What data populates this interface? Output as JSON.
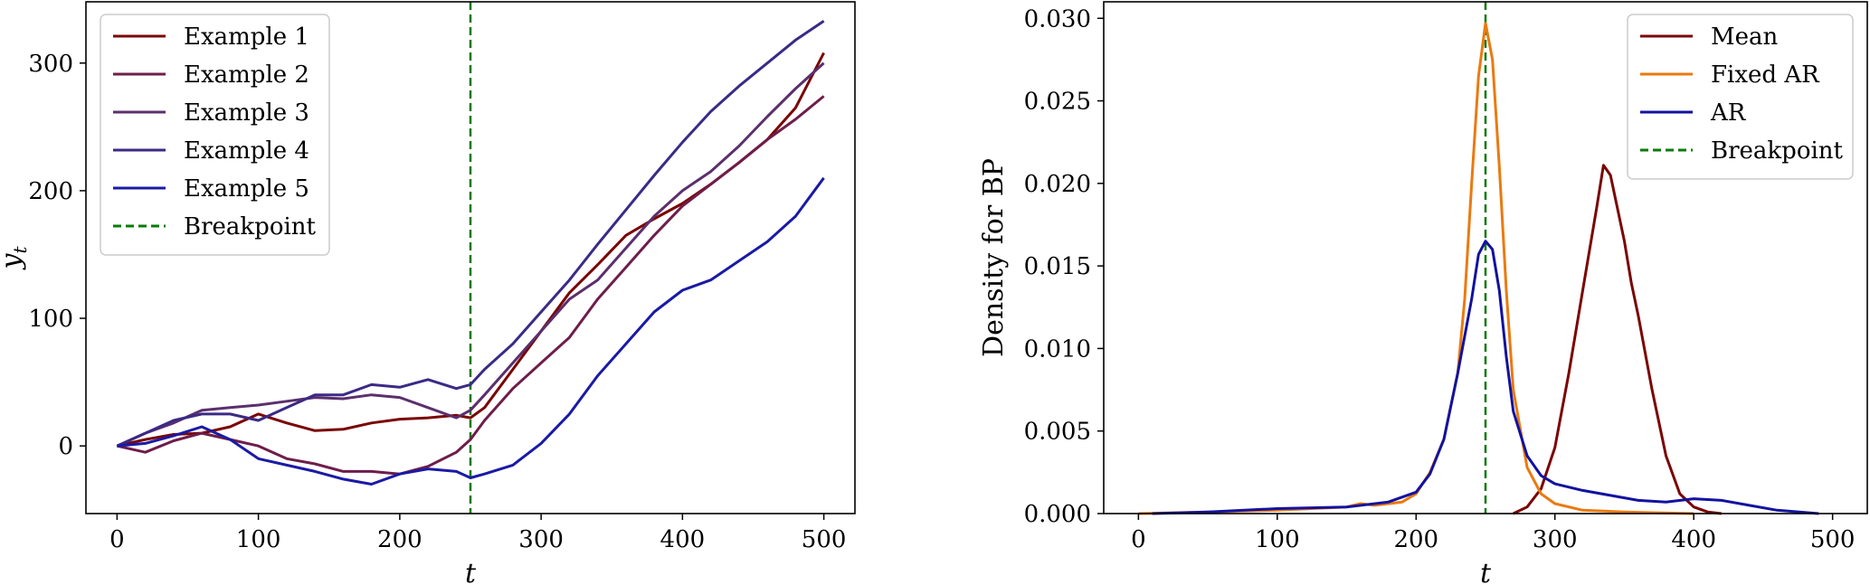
{
  "chart_data": [
    {
      "type": "line",
      "title": "",
      "xlabel": "t",
      "ylabel": "y",
      "ylabel_subscript": "t",
      "xlim": [
        -22,
        522
      ],
      "ylim": [
        -53,
        348
      ],
      "xticks": [
        0,
        100,
        200,
        300,
        400,
        500
      ],
      "yticks": [
        0,
        100,
        200,
        300
      ],
      "grid": false,
      "legend_position": "top-left",
      "breakpoint": 250,
      "series": [
        {
          "name": "Example 1",
          "color": "#7a0403",
          "x": [
            0,
            20,
            40,
            60,
            80,
            100,
            120,
            140,
            160,
            180,
            200,
            220,
            240,
            250,
            260,
            280,
            300,
            320,
            340,
            360,
            380,
            400,
            420,
            440,
            460,
            480,
            500
          ],
          "y": [
            0,
            5,
            9,
            10,
            15,
            25,
            18,
            12,
            13,
            18,
            21,
            22,
            24,
            22,
            30,
            60,
            90,
            120,
            142,
            165,
            178,
            190,
            205,
            222,
            240,
            265,
            308
          ]
        },
        {
          "name": "Example 2",
          "color": "#6e1d4a",
          "x": [
            0,
            20,
            40,
            60,
            80,
            100,
            120,
            140,
            160,
            180,
            200,
            220,
            240,
            250,
            260,
            280,
            300,
            320,
            340,
            360,
            380,
            400,
            420,
            440,
            460,
            480,
            500
          ],
          "y": [
            0,
            -5,
            4,
            10,
            5,
            0,
            -10,
            -14,
            -20,
            -20,
            -22,
            -16,
            -5,
            5,
            20,
            45,
            65,
            85,
            115,
            140,
            165,
            188,
            205,
            222,
            240,
            256,
            274
          ]
        },
        {
          "name": "Example 3",
          "color": "#5b2f6d",
          "x": [
            0,
            20,
            40,
            60,
            80,
            100,
            120,
            140,
            160,
            180,
            200,
            220,
            240,
            250,
            260,
            280,
            300,
            320,
            340,
            360,
            380,
            400,
            420,
            440,
            460,
            480,
            500
          ],
          "y": [
            0,
            10,
            18,
            28,
            30,
            32,
            35,
            38,
            37,
            40,
            38,
            30,
            22,
            28,
            40,
            65,
            90,
            115,
            130,
            155,
            180,
            200,
            215,
            235,
            258,
            280,
            300
          ]
        },
        {
          "name": "Example 4",
          "color": "#3b2a85",
          "x": [
            0,
            20,
            40,
            60,
            80,
            100,
            120,
            140,
            160,
            180,
            200,
            220,
            240,
            250,
            260,
            280,
            300,
            320,
            340,
            360,
            380,
            400,
            420,
            440,
            460,
            480,
            500
          ],
          "y": [
            0,
            10,
            20,
            25,
            25,
            20,
            30,
            40,
            40,
            48,
            46,
            52,
            45,
            48,
            60,
            80,
            105,
            130,
            158,
            185,
            212,
            238,
            262,
            282,
            300,
            318,
            333
          ]
        },
        {
          "name": "Example 5",
          "color": "#1a1aa6",
          "x": [
            0,
            20,
            40,
            60,
            80,
            100,
            120,
            140,
            160,
            180,
            200,
            220,
            240,
            250,
            260,
            280,
            300,
            320,
            340,
            360,
            380,
            400,
            420,
            440,
            460,
            480,
            500
          ],
          "y": [
            0,
            2,
            8,
            15,
            5,
            -10,
            -15,
            -20,
            -26,
            -30,
            -22,
            -18,
            -20,
            -25,
            -22,
            -15,
            2,
            25,
            55,
            80,
            105,
            122,
            130,
            145,
            160,
            180,
            210
          ]
        }
      ]
    },
    {
      "type": "line",
      "title": "",
      "xlabel": "t",
      "ylabel": "Density for BP",
      "xlim": [
        -25,
        525
      ],
      "ylim": [
        0,
        0.031
      ],
      "xticks": [
        0,
        100,
        200,
        300,
        400,
        500
      ],
      "yticks": [
        0.0,
        0.005,
        0.01,
        0.015,
        0.02,
        0.025,
        0.03
      ],
      "ytick_labels": [
        "0.000",
        "0.005",
        "0.010",
        "0.015",
        "0.020",
        "0.025",
        "0.030"
      ],
      "grid": false,
      "legend_position": "top-right",
      "breakpoint": 250,
      "series": [
        {
          "name": "Mean",
          "color": "#7a0403",
          "x": [
            270,
            280,
            290,
            300,
            310,
            320,
            330,
            335,
            340,
            350,
            355,
            360,
            370,
            380,
            390,
            400,
            410,
            420
          ],
          "y": [
            0.0,
            0.0004,
            0.0015,
            0.004,
            0.0085,
            0.0135,
            0.0185,
            0.0211,
            0.0205,
            0.0165,
            0.014,
            0.012,
            0.0075,
            0.0035,
            0.0012,
            0.0004,
            0.0001,
            0.0
          ]
        },
        {
          "name": "Fixed AR",
          "color": "#ea7a10",
          "x": [
            0,
            50,
            100,
            150,
            160,
            170,
            190,
            200,
            210,
            220,
            230,
            235,
            240,
            245,
            250,
            255,
            260,
            265,
            270,
            280,
            290,
            300,
            320,
            350,
            400
          ],
          "y": [
            0.0,
            0.0001,
            0.0002,
            0.0004,
            0.0006,
            0.0005,
            0.0007,
            0.0012,
            0.0025,
            0.0045,
            0.0085,
            0.013,
            0.02,
            0.0265,
            0.0297,
            0.0275,
            0.021,
            0.0135,
            0.0075,
            0.0028,
            0.0012,
            0.0006,
            0.0002,
            0.0001,
            0.0
          ]
        },
        {
          "name": "AR",
          "color": "#1212a0",
          "x": [
            10,
            50,
            100,
            150,
            180,
            200,
            210,
            220,
            230,
            240,
            245,
            250,
            255,
            260,
            265,
            270,
            280,
            290,
            300,
            320,
            340,
            360,
            380,
            400,
            420,
            440,
            460,
            490
          ],
          "y": [
            0.0,
            0.0001,
            0.0003,
            0.0004,
            0.0007,
            0.0013,
            0.0024,
            0.0045,
            0.0085,
            0.013,
            0.0157,
            0.0165,
            0.016,
            0.0135,
            0.0095,
            0.0062,
            0.0035,
            0.0023,
            0.0018,
            0.0014,
            0.0011,
            0.0008,
            0.0007,
            0.0009,
            0.0008,
            0.0005,
            0.0002,
            0.0
          ]
        }
      ]
    }
  ],
  "breakpoint_label": "Breakpoint",
  "breakpoint_color": "#0a7a0a"
}
